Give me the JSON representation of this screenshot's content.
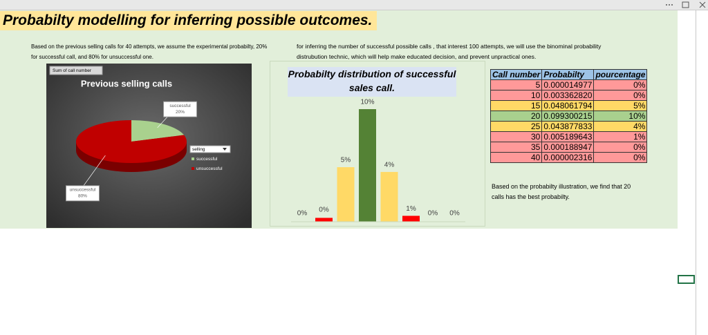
{
  "title": "Probabilty modelling for inferring possible outcomes.",
  "left_text": "Based on the previous selling calls for 40 attempts, we assume the experimental probabilty, 20% for successful call, and 80% for unsuccessful one.",
  "right_text": "for inferring the number of successful possible calls , that interest 100 attempts, we will use the binominal probability distrubution technic, which will help make educated decision, and prevent unpractical ones.",
  "pie_chart": {
    "type": "pie",
    "title": "Previous selling calls",
    "field_button": "Sum of call number",
    "legend_title": "selling",
    "categories": [
      "successful",
      "unsuccessful"
    ],
    "values": [
      20,
      80
    ],
    "value_labels": [
      "20%",
      "80%"
    ],
    "colors": [
      "#a9d18e",
      "#c00000"
    ]
  },
  "bar_chart": {
    "type": "bar",
    "title": "Probabilty distribution of successful sales call.",
    "values": [
      0.0015,
      0.34,
      4.81,
      9.93,
      4.39,
      0.52,
      0.019,
      0.0002
    ],
    "value_labels": [
      "0%",
      "0%",
      "5%",
      "10%",
      "4%",
      "1%",
      "0%",
      "0%"
    ],
    "colors": [
      "#70ad8f",
      "#ff0000",
      "#ffd966",
      "#548235",
      "#ffd966",
      "#ff0000",
      "#4a7a6a",
      "#7f6000"
    ]
  },
  "table": {
    "headers": [
      "Call number",
      "Probabilty",
      "pourcentage"
    ],
    "rows": [
      [
        "5",
        "0.000014977",
        "0%"
      ],
      [
        "10",
        "0.003362820",
        "0%"
      ],
      [
        "15",
        "0.048061794",
        "5%"
      ],
      [
        "20",
        "0.099300215",
        "10%"
      ],
      [
        "25",
        "0.043877833",
        "4%"
      ],
      [
        "30",
        "0.005189643",
        "1%"
      ],
      [
        "35",
        "0.000188947",
        "0%"
      ],
      [
        "40",
        "0.000002316",
        "0%"
      ]
    ],
    "row_colors": [
      "#ff9999",
      "#ff9999",
      "#ffd966",
      "#a9d08e",
      "#ffd966",
      "#ff9999",
      "#ff9999",
      "#ff9999"
    ]
  },
  "conclusion": "Based on the probabilty illustration, we find that 20 calls has the best probabilty."
}
